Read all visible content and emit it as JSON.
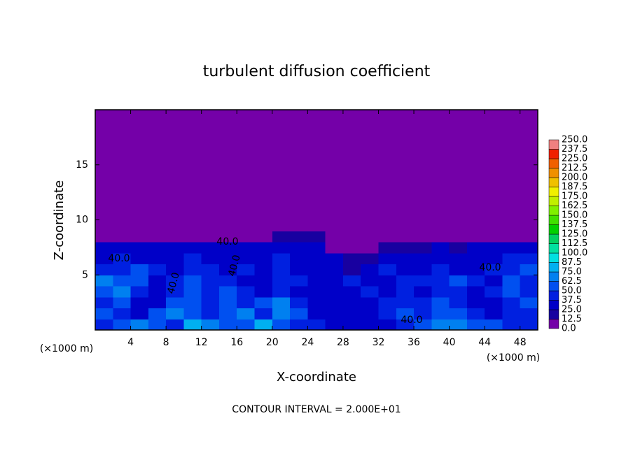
{
  "chart_data": {
    "type": "heatmap",
    "title": "turbulent diffusion coefficient",
    "xlabel": "X-coordinate",
    "ylabel": "Z-coordinate",
    "x_unit": "(×1000 m)",
    "footer": "CONTOUR INTERVAL = 2.000E+01",
    "xlim": [
      0,
      50
    ],
    "ylim": [
      0,
      20
    ],
    "xticks": [
      4,
      8,
      12,
      16,
      20,
      24,
      28,
      32,
      36,
      40,
      44,
      48
    ],
    "yticks": [
      5,
      10,
      15
    ],
    "x_bins": [
      0,
      2,
      4,
      6,
      8,
      10,
      12,
      14,
      16,
      18,
      20,
      22,
      24,
      26,
      28,
      30,
      32,
      34,
      36,
      38,
      40,
      42,
      44,
      46,
      48,
      50
    ],
    "y_bins": [
      0,
      1,
      2,
      3,
      4,
      5,
      6,
      7,
      8,
      9,
      10,
      11,
      12,
      13,
      14,
      15,
      16,
      17,
      18,
      19,
      20
    ],
    "values": [
      [
        45,
        60,
        70,
        55,
        40,
        80,
        70,
        55,
        60,
        75,
        50,
        45,
        40,
        35,
        30,
        30,
        35,
        40,
        60,
        70,
        65,
        60,
        50,
        45,
        40
      ],
      [
        50,
        40,
        35,
        60,
        70,
        55,
        45,
        50,
        65,
        40,
        70,
        60,
        35,
        30,
        30,
        30,
        40,
        50,
        45,
        55,
        50,
        40,
        35,
        40,
        45
      ],
      [
        40,
        55,
        35,
        30,
        60,
        50,
        40,
        55,
        45,
        60,
        65,
        40,
        30,
        30,
        30,
        30,
        40,
        45,
        40,
        50,
        40,
        35,
        30,
        45,
        50
      ],
      [
        60,
        70,
        45,
        30,
        45,
        60,
        40,
        50,
        40,
        35,
        40,
        35,
        30,
        30,
        35,
        40,
        35,
        40,
        35,
        45,
        45,
        35,
        40,
        55,
        40
      ],
      [
        70,
        55,
        60,
        35,
        40,
        55,
        45,
        40,
        35,
        30,
        40,
        45,
        35,
        35,
        45,
        30,
        35,
        45,
        40,
        40,
        50,
        40,
        35,
        60,
        45
      ],
      [
        45,
        40,
        50,
        40,
        35,
        40,
        45,
        35,
        40,
        30,
        40,
        35,
        30,
        30,
        20,
        30,
        40,
        30,
        35,
        40,
        35,
        30,
        40,
        45,
        55
      ],
      [
        35,
        40,
        35,
        35,
        30,
        40,
        35,
        30,
        35,
        30,
        40,
        35,
        30,
        25,
        20,
        15,
        35,
        30,
        30,
        35,
        30,
        30,
        35,
        40,
        45
      ],
      [
        30,
        30,
        30,
        30,
        30,
        30,
        35,
        30,
        30,
        30,
        35,
        30,
        30,
        10,
        5,
        5,
        20,
        20,
        20,
        25,
        20,
        25,
        30,
        30,
        30
      ],
      [
        0,
        0,
        0,
        0,
        0,
        0,
        0,
        0,
        0,
        0,
        20,
        20,
        20,
        0,
        0,
        0,
        0,
        0,
        0,
        0,
        0,
        0,
        0,
        0,
        0
      ],
      [
        0,
        0,
        0,
        0,
        0,
        0,
        0,
        0,
        0,
        0,
        0,
        0,
        0,
        0,
        0,
        0,
        0,
        0,
        0,
        0,
        0,
        0,
        0,
        0,
        0
      ],
      [
        0,
        0,
        0,
        0,
        0,
        0,
        0,
        0,
        0,
        0,
        0,
        0,
        0,
        0,
        0,
        0,
        0,
        0,
        0,
        0,
        0,
        0,
        0,
        0,
        0
      ],
      [
        0,
        0,
        0,
        0,
        0,
        0,
        0,
        0,
        0,
        0,
        0,
        0,
        0,
        0,
        0,
        0,
        0,
        0,
        0,
        0,
        0,
        0,
        0,
        0,
        0
      ],
      [
        0,
        0,
        0,
        0,
        0,
        0,
        0,
        0,
        0,
        0,
        0,
        0,
        0,
        0,
        0,
        0,
        0,
        0,
        0,
        0,
        0,
        0,
        0,
        0,
        0
      ],
      [
        0,
        0,
        0,
        0,
        0,
        0,
        0,
        0,
        0,
        0,
        0,
        0,
        0,
        0,
        0,
        0,
        0,
        0,
        0,
        0,
        0,
        0,
        0,
        0,
        0
      ],
      [
        0,
        0,
        0,
        0,
        0,
        0,
        0,
        0,
        0,
        0,
        0,
        0,
        0,
        0,
        0,
        0,
        0,
        0,
        0,
        0,
        0,
        0,
        0,
        0,
        0
      ],
      [
        0,
        0,
        0,
        0,
        0,
        0,
        0,
        0,
        0,
        0,
        0,
        0,
        0,
        0,
        0,
        0,
        0,
        0,
        0,
        0,
        0,
        0,
        0,
        0,
        0
      ],
      [
        0,
        0,
        0,
        0,
        0,
        0,
        0,
        0,
        0,
        0,
        0,
        0,
        0,
        0,
        0,
        0,
        0,
        0,
        0,
        0,
        0,
        0,
        0,
        0,
        0
      ],
      [
        0,
        0,
        0,
        0,
        0,
        0,
        0,
        0,
        0,
        0,
        0,
        0,
        0,
        0,
        0,
        0,
        0,
        0,
        0,
        0,
        0,
        0,
        0,
        0,
        0
      ],
      [
        0,
        0,
        0,
        0,
        0,
        0,
        0,
        0,
        0,
        0,
        0,
        0,
        0,
        0,
        0,
        0,
        0,
        0,
        0,
        0,
        0,
        0,
        0,
        0,
        0
      ],
      [
        0,
        0,
        0,
        0,
        0,
        0,
        0,
        0,
        0,
        0,
        0,
        0,
        0,
        0,
        0,
        0,
        0,
        0,
        0,
        0,
        0,
        0,
        0,
        0,
        0
      ]
    ],
    "colorbar": {
      "levels": [
        {
          "value": 0,
          "label": "0.0"
        },
        12.5,
        {
          "value": 25,
          "label": "25.0"
        },
        37.5,
        {
          "value": 50,
          "label": "50.0"
        },
        62.5,
        {
          "value": 75,
          "label": "75.0"
        },
        87.5,
        {
          "value": 100,
          "label": "100.0"
        },
        112.5,
        {
          "value": 125,
          "label": "125.0"
        },
        137.5,
        {
          "value": 150,
          "label": "150.0"
        },
        162.5,
        {
          "value": 175,
          "label": "175.0"
        },
        187.5,
        {
          "value": 200,
          "label": "200.0"
        },
        212.5,
        {
          "value": 225,
          "label": "225.0"
        },
        237.5,
        {
          "value": 250,
          "label": "250.0"
        }
      ],
      "colors": [
        "#7400a8",
        "#1800a0",
        "#0000c8",
        "#0020e0",
        "#0050f0",
        "#0080f0",
        "#00b0f0",
        "#00e0e0",
        "#00e0a0",
        "#00d060",
        "#00d000",
        "#40e000",
        "#80f000",
        "#c0f000",
        "#f0f000",
        "#f0c000",
        "#f09000",
        "#f06000",
        "#f02000",
        "#f08080"
      ]
    },
    "annotations": [
      "40.0",
      "40.0",
      "40.0",
      "40.0",
      "40.0",
      "40.0"
    ]
  }
}
